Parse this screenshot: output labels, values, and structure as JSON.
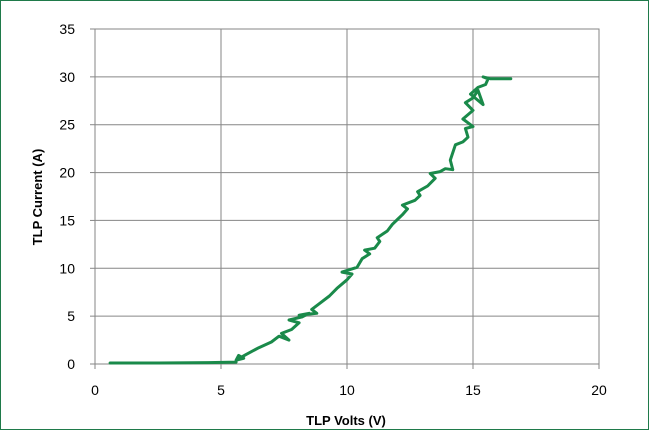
{
  "chart_data": {
    "type": "line",
    "xlabel": "TLP Volts (V)",
    "ylabel": "TLP Current (A)",
    "xlim": [
      0,
      20
    ],
    "ylim": [
      0,
      35
    ],
    "xticks": [
      0,
      5,
      10,
      15,
      20
    ],
    "yticks": [
      0,
      5,
      10,
      15,
      20,
      25,
      30,
      35
    ],
    "grid": true,
    "legend": "none",
    "series": [
      {
        "color": "#1a8a4a",
        "x": [
          0.6,
          2.5,
          4.5,
          5.6,
          5.6,
          5.7,
          5.9,
          5.6,
          6.0,
          6.5,
          7.0,
          7.3,
          7.7,
          7.4,
          7.8,
          8.1,
          7.7,
          8.2,
          8.5,
          8.1,
          8.8,
          8.6,
          8.9,
          9.3,
          9.6,
          10.0,
          10.2,
          9.8,
          10.4,
          10.6,
          10.9,
          10.7,
          11.1,
          11.3,
          11.2,
          11.6,
          11.8,
          12.0,
          12.2,
          12.4,
          12.2,
          12.7,
          12.9,
          12.8,
          13.2,
          13.5,
          13.3,
          13.7,
          13.9,
          14.2,
          14.1,
          14.3,
          14.6,
          14.8,
          14.7,
          15.0,
          14.6,
          15.0,
          14.7,
          15.0,
          15.2,
          15.4,
          14.9,
          15.2,
          15.5,
          15.6,
          15.4,
          15.7,
          16.5
        ],
        "y": [
          0.1,
          0.1,
          0.15,
          0.2,
          0.4,
          0.9,
          0.6,
          0.4,
          1.0,
          1.7,
          2.3,
          2.9,
          2.5,
          3.2,
          3.6,
          4.3,
          4.6,
          4.9,
          5.3,
          5.1,
          5.3,
          5.7,
          6.3,
          7.1,
          7.9,
          8.8,
          9.4,
          9.6,
          10.1,
          11.0,
          11.5,
          11.9,
          12.1,
          12.8,
          13.2,
          13.9,
          14.6,
          15.1,
          15.6,
          16.2,
          16.6,
          17.1,
          17.6,
          18.0,
          18.6,
          19.4,
          19.9,
          20.1,
          20.4,
          20.3,
          21.3,
          22.9,
          23.2,
          23.7,
          24.6,
          24.8,
          25.6,
          26.5,
          27.3,
          27.8,
          28.6,
          27.1,
          28.2,
          28.9,
          29.2,
          29.8,
          30.0,
          29.8,
          29.8
        ]
      }
    ]
  }
}
